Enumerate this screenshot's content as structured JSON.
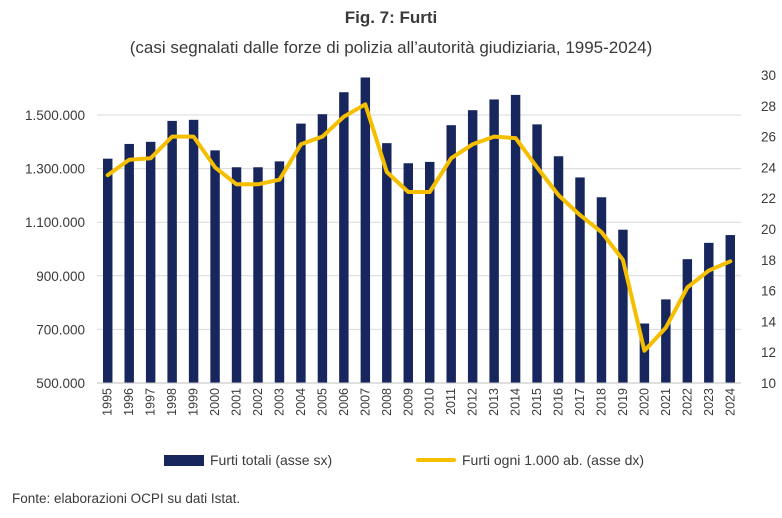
{
  "title": "Fig. 7: Furti",
  "subtitle": "(casi segnalati dalle forze di polizia all’autorità giudiziaria, 1995-2024)",
  "source": "Fonte: elaborazioni OCPI su dati Istat.",
  "colors": {
    "bar": "#17275e",
    "line": "#f5bf00",
    "grid": "#d9d9d9",
    "text": "#3a3a3a"
  },
  "chart_data": {
    "type": "bar+line",
    "categories": [
      "1995",
      "1996",
      "1997",
      "1998",
      "1999",
      "2000",
      "2001",
      "2002",
      "2003",
      "2004",
      "2005",
      "2006",
      "2007",
      "2008",
      "2009",
      "2010",
      "2011",
      "2012",
      "2013",
      "2014",
      "2015",
      "2016",
      "2017",
      "2018",
      "2019",
      "2020",
      "2021",
      "2022",
      "2023",
      "2024"
    ],
    "series": [
      {
        "name": "Furti totali (asse sx)",
        "type": "bar",
        "axis": "left",
        "values": [
          1337000,
          1392000,
          1400000,
          1478000,
          1482000,
          1368000,
          1305000,
          1305000,
          1327000,
          1468000,
          1503000,
          1585000,
          1640000,
          1395000,
          1320000,
          1325000,
          1462000,
          1518000,
          1558000,
          1575000,
          1465000,
          1346000,
          1267000,
          1193000,
          1072000,
          722000,
          812000,
          962000,
          1023000,
          1052000
        ]
      },
      {
        "name": "Furti ogni 1.000 ab. (asse dx)",
        "type": "line",
        "axis": "right",
        "values": [
          23.5,
          24.5,
          24.6,
          26.0,
          26.0,
          24.0,
          22.9,
          22.9,
          23.2,
          25.5,
          26.0,
          27.3,
          28.1,
          23.7,
          22.4,
          22.4,
          24.6,
          25.5,
          26.0,
          25.9,
          24.0,
          22.2,
          20.9,
          19.8,
          18.0,
          12.1,
          13.6,
          16.2,
          17.3,
          17.9
        ]
      }
    ],
    "y_left": {
      "min": 500000,
      "max": 1640000,
      "ticks": [
        500000,
        700000,
        900000,
        1100000,
        1300000,
        1500000
      ],
      "tick_labels": [
        "500.000",
        "700.000",
        "900.000",
        "1.100.000",
        "1.300.000",
        "1.500.000"
      ]
    },
    "y_right": {
      "min": 10,
      "max": 30,
      "ticks": [
        10,
        12,
        14,
        16,
        18,
        20,
        22,
        24,
        26,
        28,
        30
      ],
      "tick_labels": [
        "10",
        "12",
        "14",
        "16",
        "18",
        "20",
        "22",
        "24",
        "26",
        "28",
        "30"
      ]
    },
    "grid": true,
    "legend_position": "bottom"
  }
}
